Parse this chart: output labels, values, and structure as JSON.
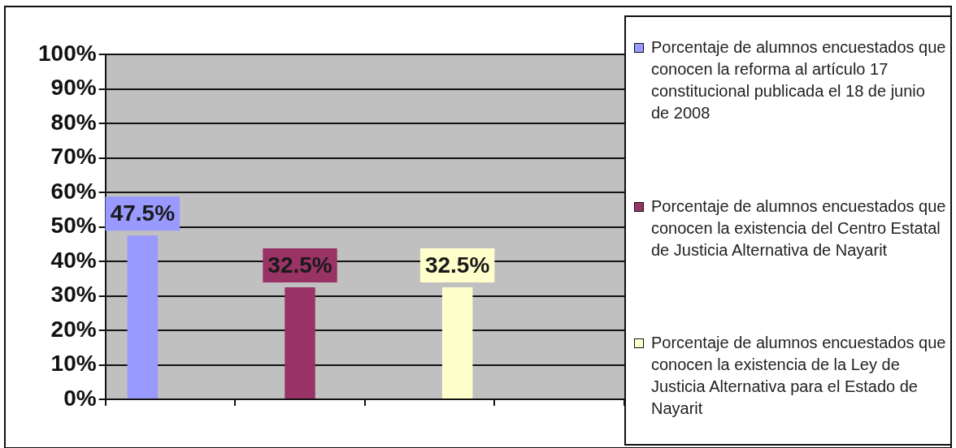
{
  "chart_data": {
    "type": "bar",
    "categories": [
      null,
      null,
      null,
      null
    ],
    "series": [
      {
        "name": "Porcentaje de alumnos encuestados que conocen la reforma al artículo 17 constitucional publicada el 18 de junio de 2008",
        "color": "#9999ff",
        "values": [
          47.5,
          null,
          null,
          null
        ],
        "value_labels": [
          "47.5%",
          null,
          null,
          null
        ]
      },
      {
        "name": "Porcentaje de alumnos encuestados que conocen la existencia del Centro Estatal de Justicia Alternativa de Nayarit",
        "color": "#993366",
        "values": [
          null,
          32.5,
          null,
          null
        ],
        "value_labels": [
          null,
          "32.5%",
          null,
          null
        ]
      },
      {
        "name": "Porcentaje de alumnos encuestados que conocen la existencia de la Ley de Justicia Alternativa para el Estado de Nayarit",
        "color": "#ffffcc",
        "values": [
          null,
          null,
          32.5,
          null
        ],
        "value_labels": [
          null,
          null,
          "32.5%",
          null
        ]
      }
    ],
    "ylim": [
      0,
      100
    ],
    "yticks": [
      {
        "value": 0,
        "label": "0%"
      },
      {
        "value": 10,
        "label": "10%"
      },
      {
        "value": 20,
        "label": "20%"
      },
      {
        "value": 30,
        "label": "30%"
      },
      {
        "value": 40,
        "label": "40%"
      },
      {
        "value": 50,
        "label": "50%"
      },
      {
        "value": 60,
        "label": "60%"
      },
      {
        "value": 70,
        "label": "70%"
      },
      {
        "value": 80,
        "label": "80%"
      },
      {
        "value": 90,
        "label": "90%"
      },
      {
        "value": 100,
        "label": "100%"
      }
    ],
    "grid": "y",
    "legend": "right"
  }
}
